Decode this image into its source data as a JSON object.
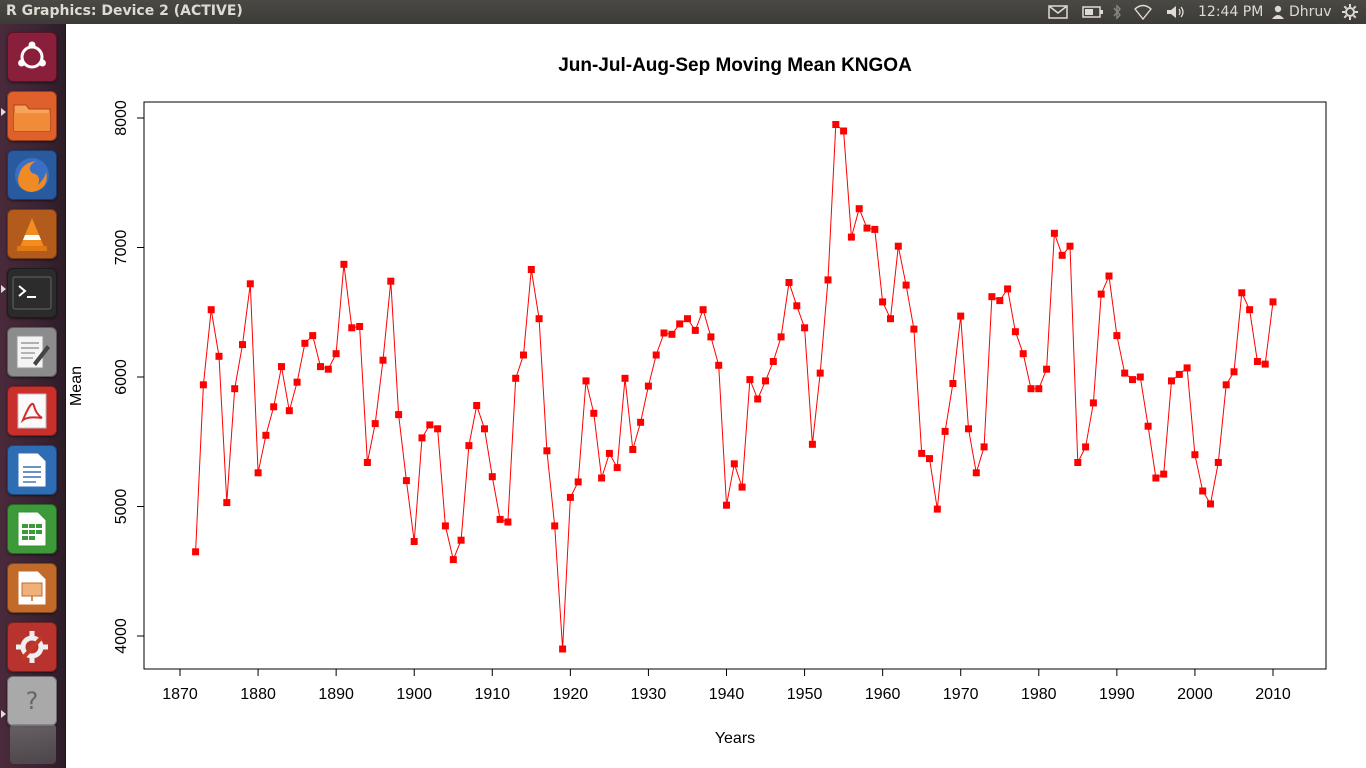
{
  "window": {
    "title": "R Graphics: Device 2 (ACTIVE)"
  },
  "indicators": {
    "mail_icon": "mail-icon",
    "battery_icon": "battery-icon",
    "bluetooth_icon": "bluetooth-icon",
    "wifi_icon": "wifi-icon",
    "volume_icon": "volume-icon",
    "clock": "12:44 PM",
    "user": "Dhruv",
    "gear_icon": "session-gear-icon"
  },
  "launcher": {
    "items": [
      {
        "name": "ubuntu-dash-icon",
        "bg": "#8a1f3b"
      },
      {
        "name": "files-folder-icon",
        "bg": "#e0602b"
      },
      {
        "name": "firefox-icon",
        "bg": "#2a5a9e"
      },
      {
        "name": "vlc-icon",
        "bg": "#b35b1c"
      },
      {
        "name": "terminal-icon",
        "bg": "#2b2b2b"
      },
      {
        "name": "text-editor-icon",
        "bg": "#8c8c8c"
      },
      {
        "name": "pdf-reader-icon",
        "bg": "#c9302c"
      },
      {
        "name": "libreoffice-writer-icon",
        "bg": "#2e6db4"
      },
      {
        "name": "libreoffice-calc-icon",
        "bg": "#3d9a3a"
      },
      {
        "name": "libreoffice-impress-icon",
        "bg": "#c26a2a"
      },
      {
        "name": "system-settings-icon",
        "bg": "#b8322e"
      },
      {
        "name": "unknown-app-icon",
        "bg": "#9a9a9a"
      }
    ]
  },
  "chart_data": {
    "type": "line",
    "title": "Jun-Jul-Aug-Sep Moving Mean KNGOA",
    "xlabel": "Years",
    "ylabel": "Mean",
    "xlim": [
      1866.5,
      11016.0
    ],
    "ylim": [
      3780,
      8115
    ],
    "xticks": [
      1870,
      1880,
      1890,
      1900,
      1910,
      1920,
      1930,
      1940,
      1950,
      1960,
      1970,
      1980,
      1990,
      2000,
      2010
    ],
    "yticks": [
      4000,
      5000,
      6000,
      7000,
      8000
    ],
    "color": "#ff0000",
    "marker": "square",
    "grid": false,
    "series": [
      {
        "name": "",
        "x": [
          1872,
          1873,
          1874,
          1875,
          1876,
          1877,
          1878,
          1879,
          1880,
          1881,
          1882,
          1883,
          1884,
          1885,
          1886,
          1887,
          1888,
          1889,
          1890,
          1891,
          1892,
          1893,
          1894,
          1895,
          1896,
          1897,
          1898,
          1899,
          1900,
          1901,
          1902,
          1903,
          1904,
          1905,
          1906,
          1907,
          1908,
          1909,
          1910,
          1911,
          1912,
          1913,
          1914,
          1915,
          1916,
          1917,
          1918,
          1919,
          1920,
          1921,
          1922,
          1923,
          1924,
          1925,
          1926,
          1927,
          1928,
          1929,
          1930,
          1931,
          1932,
          1933,
          1934,
          1935,
          1936,
          1937,
          1938,
          1939,
          1940,
          1941,
          1942,
          1943,
          1944,
          1945,
          1946,
          1947,
          1948,
          1949,
          1950,
          1951,
          1952,
          1953,
          1954,
          1955,
          1956,
          1957,
          1958,
          1959,
          1960,
          1961,
          1962,
          1963,
          1964,
          1965,
          1966,
          1967,
          1968,
          1969,
          1970,
          1971,
          1972,
          1973,
          1974,
          1975,
          1976,
          1977,
          1978,
          1979,
          1980,
          1981,
          1982,
          1983,
          1984,
          1985,
          1986,
          1987,
          1988,
          1989,
          1990,
          1991,
          1992,
          1993,
          1994,
          1995,
          1996,
          1997,
          1998,
          1999,
          2000,
          2001,
          2002,
          2003,
          2004,
          2005,
          2006,
          2007,
          2008,
          2009,
          2010
        ],
        "y": [
          4650,
          5940,
          6520,
          6160,
          5030,
          5910,
          6250,
          6720,
          5260,
          5550,
          5770,
          6080,
          5740,
          5960,
          6260,
          6320,
          6080,
          6060,
          6180,
          6870,
          6380,
          6390,
          5340,
          5640,
          6130,
          6740,
          5710,
          5200,
          4730,
          5530,
          5630,
          5600,
          4850,
          4590,
          4740,
          5470,
          5780,
          5600,
          5230,
          4900,
          4880,
          5990,
          6170,
          6830,
          6450,
          5430,
          4850,
          3900,
          5070,
          5190,
          5970,
          5720,
          5220,
          5410,
          5300,
          5990,
          5440,
          5650,
          5930,
          6170,
          6340,
          6330,
          6410,
          6450,
          6360,
          6520,
          6310,
          6090,
          5010,
          5330,
          5150,
          5980,
          5830,
          5970,
          6120,
          6310,
          6730,
          6550,
          6380,
          5480,
          6030,
          6750,
          7950,
          7900,
          7080,
          7300,
          7150,
          7140,
          6580,
          6450,
          7010,
          6710,
          6370,
          5410,
          5370,
          4980,
          5580,
          5950,
          6470,
          5600,
          5260,
          5460,
          6620,
          6590,
          6680,
          6350,
          6180,
          5910,
          5910,
          6060,
          7110,
          6940,
          7010,
          5340,
          5460,
          5800,
          6640,
          6780,
          6320,
          6030,
          5980,
          6000,
          5620,
          5220,
          5250,
          5970,
          6020,
          6070,
          5400,
          5120,
          5020,
          5340,
          5940,
          6040,
          6650,
          6520,
          6120,
          6100,
          6580
        ]
      }
    ]
  }
}
